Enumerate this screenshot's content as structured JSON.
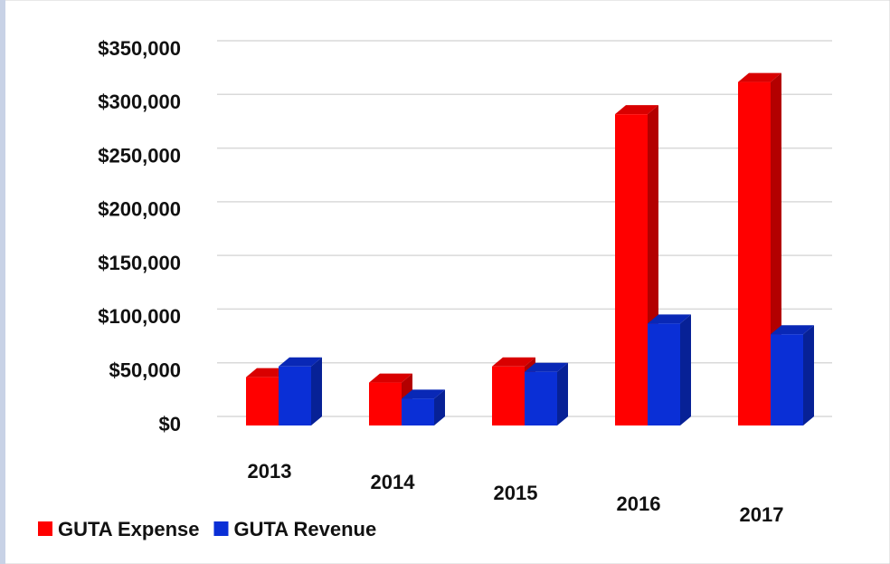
{
  "chart_data": {
    "type": "bar3d",
    "categories": [
      "2013",
      "2014",
      "2015",
      "2016",
      "2017"
    ],
    "series": [
      {
        "name": "GUTA Expense",
        "color": "#ff0000",
        "values": [
          45000,
          40000,
          55000,
          290000,
          320000
        ]
      },
      {
        "name": "GUTA Revenue",
        "color": "#0a2fd6",
        "values": [
          55000,
          25000,
          50000,
          95000,
          85000
        ]
      }
    ],
    "ylim": [
      0,
      350000
    ],
    "yticks": [
      {
        "value": 0,
        "label": "$0"
      },
      {
        "value": 50000,
        "label": "$50,000"
      },
      {
        "value": 100000,
        "label": "$100,000"
      },
      {
        "value": 150000,
        "label": "$150,000"
      },
      {
        "value": 200000,
        "label": "$200,000"
      },
      {
        "value": 250000,
        "label": "$250,000"
      },
      {
        "value": 300000,
        "label": "$300,000"
      },
      {
        "value": 350000,
        "label": "$350,000"
      }
    ],
    "grid": true,
    "legend": "bottom-left"
  }
}
